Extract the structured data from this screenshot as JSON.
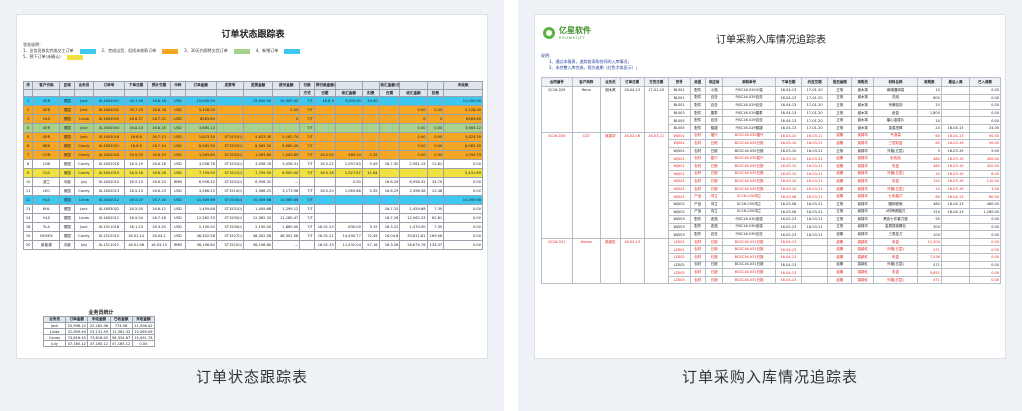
{
  "left": {
    "caption": "订单状态跟踪表",
    "title": "订单状态跟踪表",
    "notes_title": "状态说明：",
    "legend": [
      {
        "label": "1、业务员核实完成交工订单",
        "color": "#3ec8f0"
      },
      {
        "label": "2、完成出货，但尚未收款订单",
        "color": "#f5a623"
      },
      {
        "label": "3、30天内即将交货订单",
        "color": "#a9d18e"
      },
      {
        "label": "4、新增订单",
        "color": "#3ec8f0"
      },
      {
        "label": "5、预下订单(未确认)",
        "color": "#f0e040"
      }
    ],
    "headers_top": [
      "序",
      "客户代码",
      "区域",
      "业务员",
      "订单号",
      "下单日期",
      "预计交期",
      "币种",
      "订单金额",
      "发票号",
      "发票金额",
      "报关金额",
      "付款",
      "预付款金额/日期",
      "",
      "",
      "收汇金额/日期",
      "",
      "",
      "未收款"
    ],
    "headers_sub": [
      "",
      "",
      "",
      "",
      "",
      "",
      "",
      "",
      "",
      "",
      "",
      "",
      "方式",
      "日期",
      "收汇金额",
      "扣费",
      "日期",
      "收汇金额",
      "扣费",
      ""
    ],
    "rows": [
      {
        "c": [
          "1",
          "GER",
          "德国",
          "Jack",
          "XL1604001",
          "16.7.28",
          "16.8.18",
          "USD",
          "15,000.00",
          "",
          "15,000.00",
          "15,000.00",
          "T/T",
          "16.8.3",
          "3,000.00",
          "15.00",
          "",
          "",
          "",
          "12,000.00"
        ],
        "bg": "#3ec8f0"
      },
      {
        "c": [
          "2",
          "GER",
          "德国",
          "Jack",
          "XL1604002",
          "16.7.10",
          "16.8.18",
          "USD",
          "5,428.00",
          "",
          "",
          "0.00",
          "T/T",
          "",
          "",
          "",
          "",
          "0.00",
          "0.00",
          "5,428.00"
        ],
        "bg": "#f5a623"
      },
      {
        "c": [
          "3",
          "HLS",
          "德国",
          "Linda",
          "XL1604003",
          "16.6.27",
          "16.7.20",
          "USD",
          "8583.60",
          "",
          "",
          "0",
          "T/T",
          "",
          "",
          "",
          "",
          "0",
          "0",
          "8583.60"
        ],
        "bg": "#f5a623"
      },
      {
        "c": [
          "4",
          "GER",
          "德国",
          "Jack",
          "XL1604004",
          "16.8.10",
          "16.8.18",
          "USD",
          "3,685.12",
          "",
          "",
          "",
          "T/T",
          "",
          "",
          "",
          "",
          "0.00",
          "0.00",
          "3,685.12"
        ],
        "bg": "#a9d18e"
      },
      {
        "c": [
          "5",
          "GER",
          "德国",
          "Jack",
          "XL1603016",
          "16.6.6",
          "16.7.13",
          "USD",
          "5,823.30",
          "ST1531(I)",
          "5,823.30",
          "5,182.74",
          "T/T",
          "",
          "",
          "",
          "",
          "0.00",
          "0.00",
          "5,823.30"
        ],
        "bg": "#f5a623"
      },
      {
        "c": [
          "6",
          "KBK",
          "美国",
          "Candy",
          "XL1603001",
          "16.6.6",
          "16.7.14",
          "USD",
          "8,965.30",
          "ST1537(I)",
          "8,965.30",
          "8,965.30",
          "T/T",
          "",
          "",
          "",
          "",
          "0.00",
          "0.00",
          "8,965.30"
        ],
        "bg": "#f5a623"
      },
      {
        "c": [
          "7",
          "CON",
          "美国",
          "Candy",
          "XL1602018",
          "16.5.29",
          "16.6.19",
          "USD",
          "1,563.89",
          "ST1532(I)",
          "1,563.89",
          "1,563.89",
          "T/T",
          "16.2.20",
          "469.20",
          "2.35",
          "",
          "0.00",
          "0.00",
          "1,094.79"
        ],
        "bg": "#f5a623"
      },
      {
        "c": [
          "8",
          "LOB",
          "美国",
          "Candy",
          "XL1602016",
          "16.5.19",
          "16.6.26",
          "USD",
          "3,058.78",
          "ST1531(I)",
          "3,058.78",
          "3,058.31",
          "T/T",
          "16.5.22",
          "1,097.63",
          "5.49",
          "16.7.40",
          "2,561.15",
          "12.81",
          "0.00"
        ],
        "bg": ""
      },
      {
        "c": [
          "9",
          "CLS",
          "美国",
          "Candy",
          "XL1601015",
          "16.5.18",
          "16.6.28",
          "USD",
          "7,759.55",
          "ST1521(I)",
          "7,759.55",
          "6,900.00",
          "T/T",
          "16.5.18",
          "2,327.87",
          "11.64",
          "",
          "",
          "",
          "5,431.69"
        ],
        "bg": "#f0e040"
      },
      {
        "c": [
          "10",
          "波兰",
          "中欧",
          "July",
          "XL1602010",
          "16.5.13",
          "16.6.20",
          "RMB",
          "6,958.32",
          "ST1531(I)",
          "6,958.32",
          "---",
          "",
          "",
          "0.00",
          "",
          "16.6.29",
          "6,958.32",
          "34.79",
          "0.00"
        ],
        "bg": ""
      },
      {
        "c": [
          "11",
          "LEO",
          "美国",
          "Candy",
          "XL1602013",
          "16.5.13",
          "16.6.23",
          "USD",
          "3,566.25",
          "ST1514(I)",
          "3,566.25",
          "3,173.96",
          "T/T",
          "16.5.20",
          "1,069.88",
          "5.35",
          "16.6.29",
          "2,496.38",
          "12.48",
          "0.00"
        ],
        "bg": ""
      },
      {
        "c": [
          "12",
          "HLS",
          "德国",
          "Linda",
          "XL1602012",
          "16.5.07",
          "16.7.16",
          "USD",
          "10,569.66",
          "ST1534(I)",
          "10,569.66",
          "10,569.66",
          "T/T",
          "",
          "",
          "",
          "",
          "",
          "",
          "10,569.66"
        ],
        "bg": "#3ec8f0"
      },
      {
        "c": [
          "13",
          "KHL",
          "德国",
          "Jack",
          "XL1603002",
          "16.5.05",
          "16.6.12",
          "USD",
          "1,459.68",
          "ST1531(I)",
          "1,459.68",
          "1,299.12",
          "T/T",
          "",
          "",
          "",
          "16.7.15",
          "1,459.68",
          "7.30",
          "0.00"
        ],
        "bg": ""
      },
      {
        "c": [
          "14",
          "HLS",
          "德国",
          "Linda",
          "XL1602012",
          "16.5.04",
          "16.7.16",
          "USD",
          "12,562.33",
          "ST1535(I)",
          "12,562.33",
          "11,180.47",
          "T/T",
          "",
          "",
          "",
          "16.7.26",
          "12,562.33",
          "62.81",
          "0.00"
        ],
        "bg": ""
      },
      {
        "c": [
          "18",
          "YLA",
          "德国",
          "Jack",
          "XL1511018",
          "16.1.23",
          "16.3.20",
          "USD",
          "2,100.00",
          "ST1530(I)",
          "2,100.00",
          "1,869.00",
          "T/T",
          "16.01.25",
          "630.00",
          "3.15",
          "16.3.22",
          "1,470.00",
          "7.35",
          "0.00"
        ],
        "bg": ""
      },
      {
        "c": [
          "19",
          "NOVEX",
          "德国",
          "Candy",
          "XL1512015",
          "16.01.14",
          "16.04.1",
          "USD",
          "48,302.58",
          "ST1527(I)",
          "48,302.58",
          "48,302.58",
          "T/T",
          "16.01.21",
          "14,490.77",
          "72.45",
          "16.04.8",
          "33,811.81",
          "169.06",
          "0.00"
        ],
        "bg": ""
      },
      {
        "c": [
          "20",
          "新能源",
          "中欧",
          "July",
          "XL1511012",
          "16.01.08",
          "16.03.15",
          "RMB",
          "38,106.80",
          "ST1525(I)",
          "38,106.80",
          "---",
          "",
          "16.01.15",
          "11,432.04",
          "57.16",
          "16.3.28",
          "26,674.76",
          "133.37",
          "0.00"
        ],
        "bg": ""
      }
    ],
    "summary_title": "业务员统计",
    "summary_headers": [
      "业务员",
      "订单金额",
      "未收金额",
      "已收金额",
      "未收金额"
    ],
    "summary_rows": [
      [
        "Jack",
        "25,998.10",
        "22,282.98",
        "774.56",
        "21,508.42"
      ],
      [
        "Linda",
        "31,899.49",
        "23,131.59",
        "12,562.33",
        "10,569.06"
      ],
      [
        "Candy",
        "73,816.45",
        "73,816.45",
        "58,324.67",
        "15,491.78"
      ],
      [
        "July",
        "47,165.12",
        "47,165.12",
        "47,165.12",
        "0.00"
      ]
    ]
  },
  "right": {
    "caption": "订单采购入库情况追踪表",
    "logo_cn": "亿星软件",
    "logo_en": "ESUNSOFT",
    "title": "订单采购入库情况追踪表",
    "notes": [
      "说明：",
      "1、通过本报表，追踪各采购合同的入库情况；",
      "2、未完整入库完成，视为逾期（红色字体显示）；"
    ],
    "headers": [
      "合同编号",
      "客户简称",
      "业务员",
      "订单日期",
      "交货日期",
      "货号",
      "类型",
      "供应商",
      "采购单号",
      "下单日期",
      "约定交期",
      "是否逾期",
      "采购员",
      "材料名称",
      "采购数",
      "最后入库",
      "已入库数"
    ],
    "groups": [
      {
        "contract": "SC16-029",
        "customer": "Reno",
        "sales": "谢木寓",
        "odate": "16-04-13",
        "ddate": "17-01-20",
        "red": false,
        "lines": [
          {
            "c": [
              "BL001",
              "配件",
              "小强",
              "PJSC16-029小强",
              "16-04-13",
              "17-01-20",
              "正常",
              "谢木寓",
              "麻绳捆绑袋",
              "10",
              "",
              "0.00"
            ],
            "red": false
          },
          {
            "c": [
              "BL001",
              "配件",
              "百亚",
              "PJSC16-029百亚",
              "16-04-13",
              "17-01-20",
              "正常",
              "谢木寓",
              "花纸",
              "600",
              "",
              "0.00"
            ],
            "red": false
          },
          {
            "c": [
              "BL001",
              "配件",
              "百亚",
              "PJSC16-029百亚",
              "16-04-13",
              "17-01-20",
              "正常",
              "谢木寓",
              "吊牌挂钩",
              "10",
              "",
              "0.00"
            ],
            "red": false
          },
          {
            "c": [
              "BL003",
              "配件",
              "捷泰",
              "PJSC16-029捷泰",
              "16-04-13",
              "17-01-20",
              "正常",
              "谢木寓",
              "纸盒",
              "1,800",
              "",
              "0.00"
            ],
            "red": false
          },
          {
            "c": [
              "BL005",
              "配件",
              "百亚",
              "PJSC16-029百亚",
              "16-04-13",
              "17-01-20",
              "正常",
              "谢木寓",
              "磨心金属片",
              "10",
              "",
              "0.00"
            ],
            "red": false
          },
          {
            "c": [
              "BL005",
              "配件",
              "骏捷",
              "PJSC16-029骏捷",
              "16-04-13",
              "17-01-20",
              "正常",
              "谢木寓",
              "金属扭棒",
              "24",
              "16-04-13",
              "24.00"
            ],
            "red": false
          }
        ]
      },
      {
        "contract": "SC16-030",
        "customer": "C&T",
        "sales": "吴锦华",
        "odate": "16-02-16",
        "ddate": "16-03-21",
        "red": true,
        "lines": [
          {
            "c": [
              "WJ001",
              "包材",
              "福兴",
              "BCSC16-030福兴",
              "16-03-10",
              "16-03-21",
              "逾期",
              "吴锦华",
              "气泡袋",
              "60",
              "16-04-13",
              "50.00"
            ],
            "red": true
          },
          {
            "c": [
              "WJ001",
              "包材",
              "日报",
              "BCSC16-030日报",
              "16-03-10",
              "16-03-21",
              "逾期",
              "吴锦华",
              "三层彩盒",
              "60",
              "16-03-19",
              "50.00"
            ],
            "red": true
          },
          {
            "c": [
              "WJ001",
              "包材",
              "日报",
              "BCSC16-030日报",
              "16-03-10",
              "16-03-21",
              "正常",
              "吴锦华",
              "外箱(五层)",
              "5",
              "16-03-19",
              "5.00"
            ],
            "red": false
          },
          {
            "c": [
              "WJ001",
              "包材",
              "嘉兴",
              "BCSC16-030嘉兴",
              "16-03-10",
              "16-03-21",
              "逾期",
              "吴锦华",
              "彩色贴",
              "480",
              "16-03-19",
              "400.00"
            ],
            "red": true
          },
          {
            "c": [
              "WJ001",
              "包材",
              "日报",
              "BCSC16-030日报",
              "16-03-10",
              "16-03-21",
              "逾期",
              "吴锦华",
              "彩盒",
              "480",
              "16-03-19",
              "420.00"
            ],
            "red": true
          },
          {
            "c": [
              "WJ001",
              "包材",
              "日报",
              "BCSC16-030日报",
              "16-03-10",
              "16-03-21",
              "逾期",
              "吴锦华",
              "外箱(五层)",
              "10",
              "16-03-19",
              "8.00"
            ],
            "red": true
          },
          {
            "c": [
              "WJ001",
              "包材",
              "日报",
              "BCSC16-030日报",
              "16-03-10",
              "16-03-21",
              "逾期",
              "吴锦华",
              "彩盒",
              "120",
              "16-03-19",
              "110.00"
            ],
            "red": true
          },
          {
            "c": [
              "WJ001",
              "包材",
              "日报",
              "BCSC16-030日报",
              "16-03-10",
              "16-03-21",
              "逾期",
              "吴锦华",
              "外箱(五层)",
              "10",
              "16-03-19",
              "3.00"
            ],
            "red": true
          },
          {
            "c": [
              "WJ001",
              "产品",
              "鸿立",
              "SC16-030鸿立",
              "16-03-08",
              "16-03-21",
              "逾期",
              "吴锦华",
              "七彩磨刀",
              "60",
              "16-04-13",
              "60.00"
            ],
            "red": true
          },
          {
            "c": [
              "WJ002",
              "产品",
              "鸿立",
              "SC16-030鸿立",
              "16-03-08",
              "16-03-21",
              "正常",
              "吴锦华",
              "圆柄铁锹",
              "480",
              "16-04-13",
              "480.00"
            ],
            "red": false
          },
          {
            "c": [
              "WJ002",
              "产品",
              "鸿立",
              "SC16-030鸿立",
              "16-03-08",
              "16-03-21",
              "正常",
              "吴锦华",
              "4件陶瓷磨刀",
              "120",
              "16-04-13",
              "1,160.00"
            ],
            "red": false
          },
          {
            "c": [
              "WJ003",
              "配件",
              "波强",
              "PJSC16-030波强",
              "16-02-23",
              "16-03-21",
              "正常",
              "吴锦华",
              "黑色七件套刀座",
              "50",
              "",
              "0.00"
            ],
            "red": false
          },
          {
            "c": [
              "WJ003",
              "配件",
              "波强",
              "PJSC16-030波强",
              "16-02-23",
              "16-03-21",
              "正常",
              "吴锦华",
              "金属搭接螺丝",
              "300",
              "",
              "0.00"
            ],
            "red": false
          },
          {
            "c": [
              "WJ003",
              "配件",
              "百亚",
              "PJSC16-030百亚",
              "16-02-23",
              "16-03-21",
              "逾期",
              "吴锦华",
              "三角挂刀",
              "100",
              "",
              "0.00"
            ],
            "red": false
          }
        ]
      },
      {
        "contract": "SC16-031",
        "customer": "Hutzer",
        "sales": "梁颖虹",
        "odate": "16-04-13",
        "ddate": "",
        "red": true,
        "lines": [
          {
            "c": [
              "LZ001",
              "包材",
              "日报",
              "BCSC16-031日报",
              "16-04-13",
              "",
              "逾期",
              "梁颖虹",
              "彩盒",
              "11,304",
              "",
              "0.00"
            ],
            "red": true
          },
          {
            "c": [
              "LZ001",
              "包材",
              "日报",
              "BCSC16-031日报",
              "16-04-13",
              "",
              "逾期",
              "梁颖虹",
              "外箱(五层)",
              "471",
              "",
              "0.00"
            ],
            "red": true
          },
          {
            "c": [
              "LZ002",
              "包材",
              "日报",
              "BCSC16-031日报",
              "16-04-13",
              "",
              "逾期",
              "梁颖虹",
              "彩盒",
              "7,536",
              "",
              "0.00"
            ],
            "red": true
          },
          {
            "c": [
              "LZ002",
              "包材",
              "日报",
              "BCSC16-031日报",
              "16-04-13",
              "",
              "逾期",
              "梁颖虹",
              "外箱(五层)",
              "471",
              "",
              "0.00"
            ],
            "red": false
          },
          {
            "c": [
              "LZ003",
              "包材",
              "日报",
              "BCSC16-031日报",
              "16-04-13",
              "",
              "逾期",
              "梁颖虹",
              "彩盒",
              "5,652",
              "",
              "0.00"
            ],
            "red": true
          },
          {
            "c": [
              "LZ003",
              "包材",
              "日报",
              "BCSC16-031日报",
              "16-04-13",
              "",
              "逾期",
              "梁颖虹",
              "外箱(五层)",
              "471",
              "",
              "0.00"
            ],
            "red": true
          }
        ]
      }
    ]
  }
}
